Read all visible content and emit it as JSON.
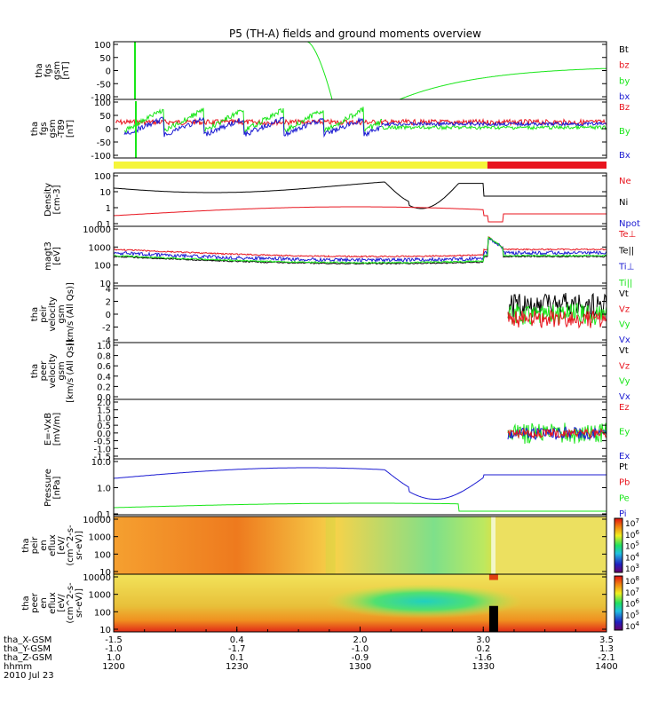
{
  "title": "P5 (TH-A) fields and ground moments overview",
  "colors": {
    "black": "#000000",
    "red": "#e8141e",
    "green": "#19e619",
    "blue": "#1b1bd2",
    "yellow": "#f5f53a"
  },
  "chart_data": [
    {
      "type": "line",
      "id": "fgs",
      "ylabel": [
        "tha",
        "fgs",
        "gsm",
        "[nT]"
      ],
      "yticks": [
        "100",
        "50",
        "0",
        "-50",
        "-100"
      ],
      "ylim": [
        -100,
        100
      ],
      "legend": [
        {
          "label": "Bt",
          "color": "black"
        },
        {
          "label": "bz",
          "color": "red"
        },
        {
          "label": "by",
          "color": "green"
        },
        {
          "label": "bx",
          "color": "blue"
        }
      ]
    },
    {
      "type": "line",
      "id": "fgs_t89",
      "ylabel": [
        "tha",
        "fgs",
        "gsm",
        "-T89",
        "[nT]"
      ],
      "yticks": [
        "100",
        "50",
        "0",
        "-50",
        "-100"
      ],
      "ylim": [
        -100,
        100
      ],
      "legend": [
        {
          "label": "Bz",
          "color": "red"
        },
        {
          "label": "By",
          "color": "green"
        },
        {
          "label": "Bx",
          "color": "blue"
        }
      ]
    },
    {
      "type": "bar",
      "id": "mode_bar",
      "segments": [
        {
          "x": [
            1200,
            1331
          ],
          "color": "yellow"
        },
        {
          "x": [
            1331,
            1400
          ],
          "color": "red"
        }
      ]
    },
    {
      "type": "line",
      "id": "density",
      "ylabel": [
        "Density",
        "[cm-3]"
      ],
      "yticks": [
        "100",
        "10",
        "1",
        "0.1"
      ],
      "scale": "log",
      "legend": [
        {
          "label": "Ne",
          "color": "red"
        },
        {
          "label": "Ni",
          "color": "black"
        },
        {
          "label": "Npot",
          "color": "blue"
        }
      ]
    },
    {
      "type": "line",
      "id": "temperature",
      "ylabel": [
        "magt3",
        "[eV]"
      ],
      "yticks": [
        "10000",
        "1000",
        "100",
        "10"
      ],
      "scale": "log",
      "legend": [
        {
          "label": "Te⊥",
          "color": "red"
        },
        {
          "label": "Te||",
          "color": "black"
        },
        {
          "label": "Ti⊥",
          "color": "blue"
        },
        {
          "label": "Ti||",
          "color": "green"
        }
      ]
    },
    {
      "type": "line",
      "id": "peir_velocity",
      "ylabel": [
        "tha",
        "peir",
        "velocity",
        "gsm",
        "[km/s (All Qs)]"
      ],
      "yticks": [
        "4",
        "2",
        "0",
        "-2",
        "-4"
      ],
      "ylim": [
        -4,
        4
      ],
      "legend": [
        {
          "label": "Vt",
          "color": "black"
        },
        {
          "label": "Vz",
          "color": "red"
        },
        {
          "label": "Vy",
          "color": "green"
        },
        {
          "label": "Vx",
          "color": "blue"
        }
      ]
    },
    {
      "type": "line",
      "id": "peer_velocity",
      "ylabel": [
        "tha",
        "peer",
        "velocity",
        "gsm",
        "[km/s (All Qs)]"
      ],
      "yticks": [
        "1.0",
        "0.8",
        "0.6",
        "0.4",
        "0.2",
        "0.0"
      ],
      "ylim": [
        0,
        1
      ],
      "legend": [
        {
          "label": "Vt",
          "color": "black"
        },
        {
          "label": "Vz",
          "color": "red"
        },
        {
          "label": "Vy",
          "color": "green"
        },
        {
          "label": "Vx",
          "color": "blue"
        }
      ]
    },
    {
      "type": "line",
      "id": "efield",
      "ylabel": [
        "E=-VxB",
        "[mV/m]"
      ],
      "yticks": [
        "2.0",
        "1.5",
        "1.0",
        "0.5",
        "0.0",
        "-0.5",
        "-1.0",
        "-1.5"
      ],
      "ylim": [
        -1.5,
        2.0
      ],
      "legend": [
        {
          "label": "Ez",
          "color": "red"
        },
        {
          "label": "Ey",
          "color": "green"
        },
        {
          "label": "Ex",
          "color": "blue"
        }
      ]
    },
    {
      "type": "line",
      "id": "pressure",
      "ylabel": [
        "Pressure",
        "[nPa]"
      ],
      "yticks": [
        "10.0",
        "1.0",
        "0.1"
      ],
      "scale": "log",
      "legend": [
        {
          "label": "Pt",
          "color": "black"
        },
        {
          "label": "Pb",
          "color": "red"
        },
        {
          "label": "Pe",
          "color": "green"
        },
        {
          "label": "Pi",
          "color": "blue"
        }
      ]
    },
    {
      "type": "heatmap",
      "id": "peir_spec",
      "ylabel": [
        "tha",
        "peir",
        "en",
        "eflux",
        "[eV/",
        "(cm^2-s-",
        "sr-eV)]"
      ],
      "yticks": [
        "10000",
        "1000",
        "100",
        "10"
      ],
      "colorbar": [
        "10^7",
        "10^6",
        "10^5",
        "10^4",
        "10^3"
      ]
    },
    {
      "type": "heatmap",
      "id": "peer_spec",
      "ylabel": [
        "tha",
        "peer",
        "en",
        "eflux",
        "[eV/",
        "(cm^2-s-",
        "sr-eV)]"
      ],
      "yticks": [
        "10000",
        "1000",
        "100",
        "10"
      ],
      "colorbar": [
        "10^8",
        "10^7",
        "10^6",
        "10^5",
        "10^4"
      ]
    }
  ],
  "xaxis": {
    "row_labels": [
      "tha_X-GSM",
      "tha_Y-GSM",
      "tha_Z-GSM",
      "hhmm",
      "2010 Jul 23"
    ],
    "columns": [
      [
        "-1.5",
        "-1.0",
        "1.0",
        "1200"
      ],
      [
        "0.4",
        "-1.7",
        "0.1",
        "1230"
      ],
      [
        "2.0",
        "-1.0",
        "-0.9",
        "1300"
      ],
      [
        "3.0",
        "0.2",
        "-1.6",
        "1330"
      ],
      [
        "3.5",
        "1.3",
        "-2.1",
        "1400"
      ]
    ],
    "hhmm_range": [
      1200,
      1400
    ]
  }
}
